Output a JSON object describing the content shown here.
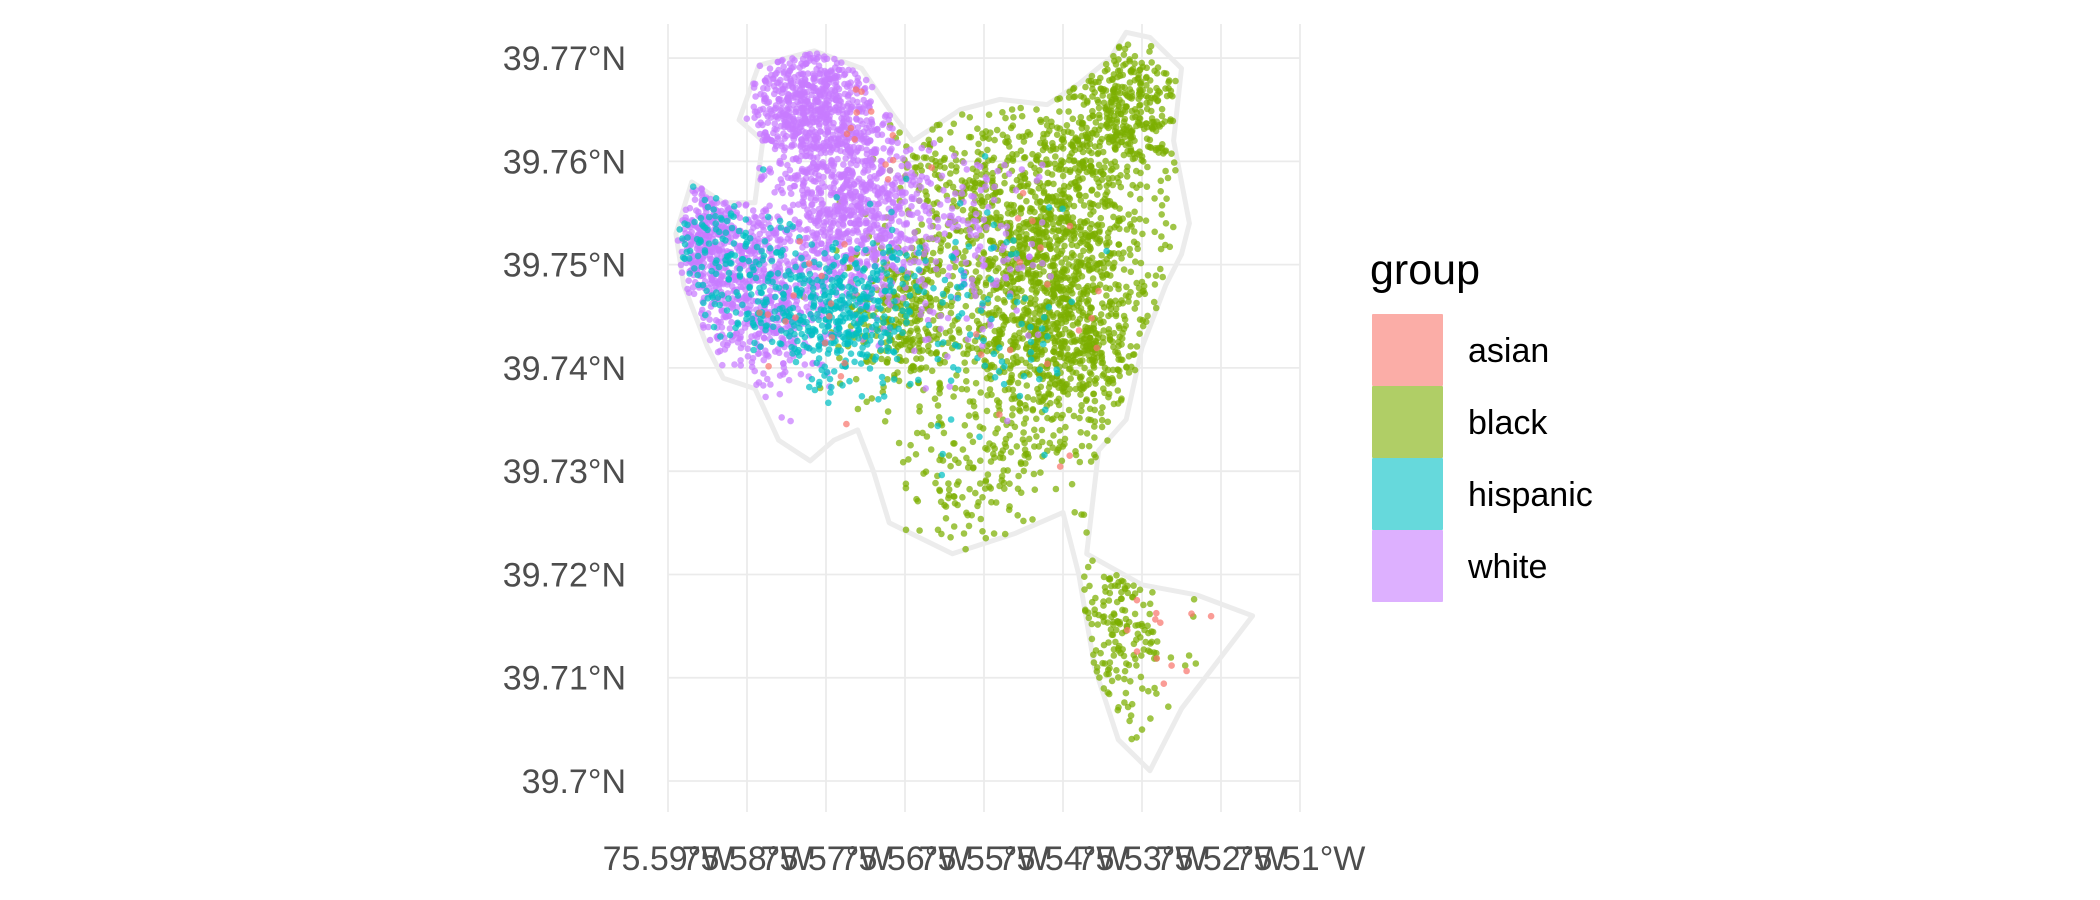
{
  "chart_data": {
    "type": "scatter",
    "title": "",
    "xlabel": "",
    "ylabel": "",
    "grid": true,
    "legend_position": "right",
    "x_ticks": [
      {
        "value": -75.59,
        "label": "75.59°W"
      },
      {
        "value": -75.58,
        "label": "75.58°W"
      },
      {
        "value": -75.57,
        "label": "75.57°W"
      },
      {
        "value": -75.56,
        "label": "75.56°W"
      },
      {
        "value": -75.55,
        "label": "75.55°W"
      },
      {
        "value": -75.54,
        "label": "75.54°W"
      },
      {
        "value": -75.53,
        "label": "75.53°W"
      },
      {
        "value": -75.52,
        "label": "75.52°W"
      },
      {
        "value": -75.51,
        "label": "75.51°W"
      }
    ],
    "y_ticks": [
      {
        "value": 39.7,
        "label": "39.7°N"
      },
      {
        "value": 39.71,
        "label": "39.71°N"
      },
      {
        "value": 39.72,
        "label": "39.72°N"
      },
      {
        "value": 39.73,
        "label": "39.73°N"
      },
      {
        "value": 39.74,
        "label": "39.74°N"
      },
      {
        "value": 39.75,
        "label": "39.75°N"
      },
      {
        "value": 39.76,
        "label": "39.76°N"
      },
      {
        "value": 39.77,
        "label": "39.77°N"
      }
    ],
    "xlim": [
      -75.59,
      -75.51
    ],
    "ylim": [
      39.697,
      39.7733
    ],
    "boundary": [
      [
        -75.5785,
        39.7693
      ],
      [
        -75.5715,
        39.7707
      ],
      [
        -75.5655,
        39.769
      ],
      [
        -75.5615,
        39.7645
      ],
      [
        -75.559,
        39.762
      ],
      [
        -75.553,
        39.765
      ],
      [
        -75.548,
        39.766
      ],
      [
        -75.542,
        39.7655
      ],
      [
        -75.538,
        39.7675
      ],
      [
        -75.534,
        39.77
      ],
      [
        -75.532,
        39.7725
      ],
      [
        -75.529,
        39.772
      ],
      [
        -75.525,
        39.769
      ],
      [
        -75.526,
        39.762
      ],
      [
        -75.524,
        39.754
      ],
      [
        -75.525,
        39.751
      ],
      [
        -75.527,
        39.748
      ],
      [
        -75.53,
        39.742
      ],
      [
        -75.532,
        39.735
      ],
      [
        -75.5355,
        39.732
      ],
      [
        -75.537,
        39.722
      ],
      [
        -75.53,
        39.719
      ],
      [
        -75.523,
        39.718
      ],
      [
        -75.516,
        39.716
      ],
      [
        -75.521,
        39.711
      ],
      [
        -75.525,
        39.707
      ],
      [
        -75.529,
        39.701
      ],
      [
        -75.533,
        39.704
      ],
      [
        -75.536,
        39.711
      ],
      [
        -75.538,
        39.72
      ],
      [
        -75.54,
        39.726
      ],
      [
        -75.546,
        39.724
      ],
      [
        -75.554,
        39.722
      ],
      [
        -75.562,
        39.725
      ],
      [
        -75.564,
        39.73
      ],
      [
        -75.566,
        39.734
      ],
      [
        -75.569,
        39.733
      ],
      [
        -75.572,
        39.731
      ],
      [
        -75.576,
        39.733
      ],
      [
        -75.579,
        39.738
      ],
      [
        -75.583,
        39.739
      ],
      [
        -75.585,
        39.742
      ],
      [
        -75.588,
        39.748
      ],
      [
        -75.589,
        39.753
      ],
      [
        -75.587,
        39.758
      ],
      [
        -75.583,
        39.756
      ],
      [
        -75.579,
        39.756
      ],
      [
        -75.578,
        39.762
      ],
      [
        -75.581,
        39.764
      ]
    ],
    "series": [
      {
        "name": "asian",
        "color": "#F8766D",
        "count": 60,
        "clusters": [
          {
            "cx": -75.564,
            "cy": 39.762,
            "sx": 0.003,
            "sy": 0.003,
            "weight": 0.2
          },
          {
            "cx": -75.57,
            "cy": 39.745,
            "sx": 0.005,
            "sy": 0.005,
            "weight": 0.3
          },
          {
            "cx": -75.545,
            "cy": 39.745,
            "sx": 0.006,
            "sy": 0.008,
            "weight": 0.3
          },
          {
            "cx": -75.528,
            "cy": 39.713,
            "sx": 0.004,
            "sy": 0.004,
            "weight": 0.2
          }
        ]
      },
      {
        "name": "black",
        "color": "#7CAE00",
        "count": 2800,
        "clusters": [
          {
            "cx": -75.542,
            "cy": 39.753,
            "sx": 0.0065,
            "sy": 0.0065,
            "weight": 0.38
          },
          {
            "cx": -75.54,
            "cy": 39.742,
            "sx": 0.006,
            "sy": 0.0045,
            "weight": 0.22
          },
          {
            "cx": -75.532,
            "cy": 39.765,
            "sx": 0.0035,
            "sy": 0.0035,
            "weight": 0.12
          },
          {
            "cx": -75.56,
            "cy": 39.745,
            "sx": 0.004,
            "sy": 0.004,
            "weight": 0.12
          },
          {
            "cx": -75.55,
            "cy": 39.73,
            "sx": 0.007,
            "sy": 0.004,
            "weight": 0.06
          },
          {
            "cx": -75.533,
            "cy": 39.715,
            "sx": 0.004,
            "sy": 0.005,
            "weight": 0.06
          },
          {
            "cx": -75.555,
            "cy": 39.758,
            "sx": 0.004,
            "sy": 0.003,
            "weight": 0.04
          }
        ]
      },
      {
        "name": "hispanic",
        "color": "#00BFC4",
        "count": 650,
        "clusters": [
          {
            "cx": -75.568,
            "cy": 39.745,
            "sx": 0.0045,
            "sy": 0.0035,
            "weight": 0.55
          },
          {
            "cx": -75.578,
            "cy": 39.748,
            "sx": 0.004,
            "sy": 0.004,
            "weight": 0.2
          },
          {
            "cx": -75.55,
            "cy": 39.745,
            "sx": 0.006,
            "sy": 0.006,
            "weight": 0.15
          },
          {
            "cx": -75.585,
            "cy": 39.752,
            "sx": 0.0025,
            "sy": 0.003,
            "weight": 0.1
          }
        ]
      },
      {
        "name": "white",
        "color": "#C77CFF",
        "count": 2400,
        "clusters": [
          {
            "cx": -75.572,
            "cy": 39.765,
            "sx": 0.004,
            "sy": 0.0035,
            "weight": 0.28
          },
          {
            "cx": -75.566,
            "cy": 39.755,
            "sx": 0.0045,
            "sy": 0.0045,
            "weight": 0.3
          },
          {
            "cx": -75.578,
            "cy": 39.747,
            "sx": 0.0045,
            "sy": 0.005,
            "weight": 0.24
          },
          {
            "cx": -75.585,
            "cy": 39.753,
            "sx": 0.0025,
            "sy": 0.003,
            "weight": 0.12
          },
          {
            "cx": -75.552,
            "cy": 39.752,
            "sx": 0.005,
            "sy": 0.005,
            "weight": 0.06
          }
        ]
      }
    ]
  },
  "legend": {
    "title": "group",
    "items": [
      {
        "label": "asian",
        "color": "#F8766D"
      },
      {
        "label": "black",
        "color": "#7CAE00"
      },
      {
        "label": "hispanic",
        "color": "#00BFC4"
      },
      {
        "label": "white",
        "color": "#C77CFF"
      }
    ]
  }
}
